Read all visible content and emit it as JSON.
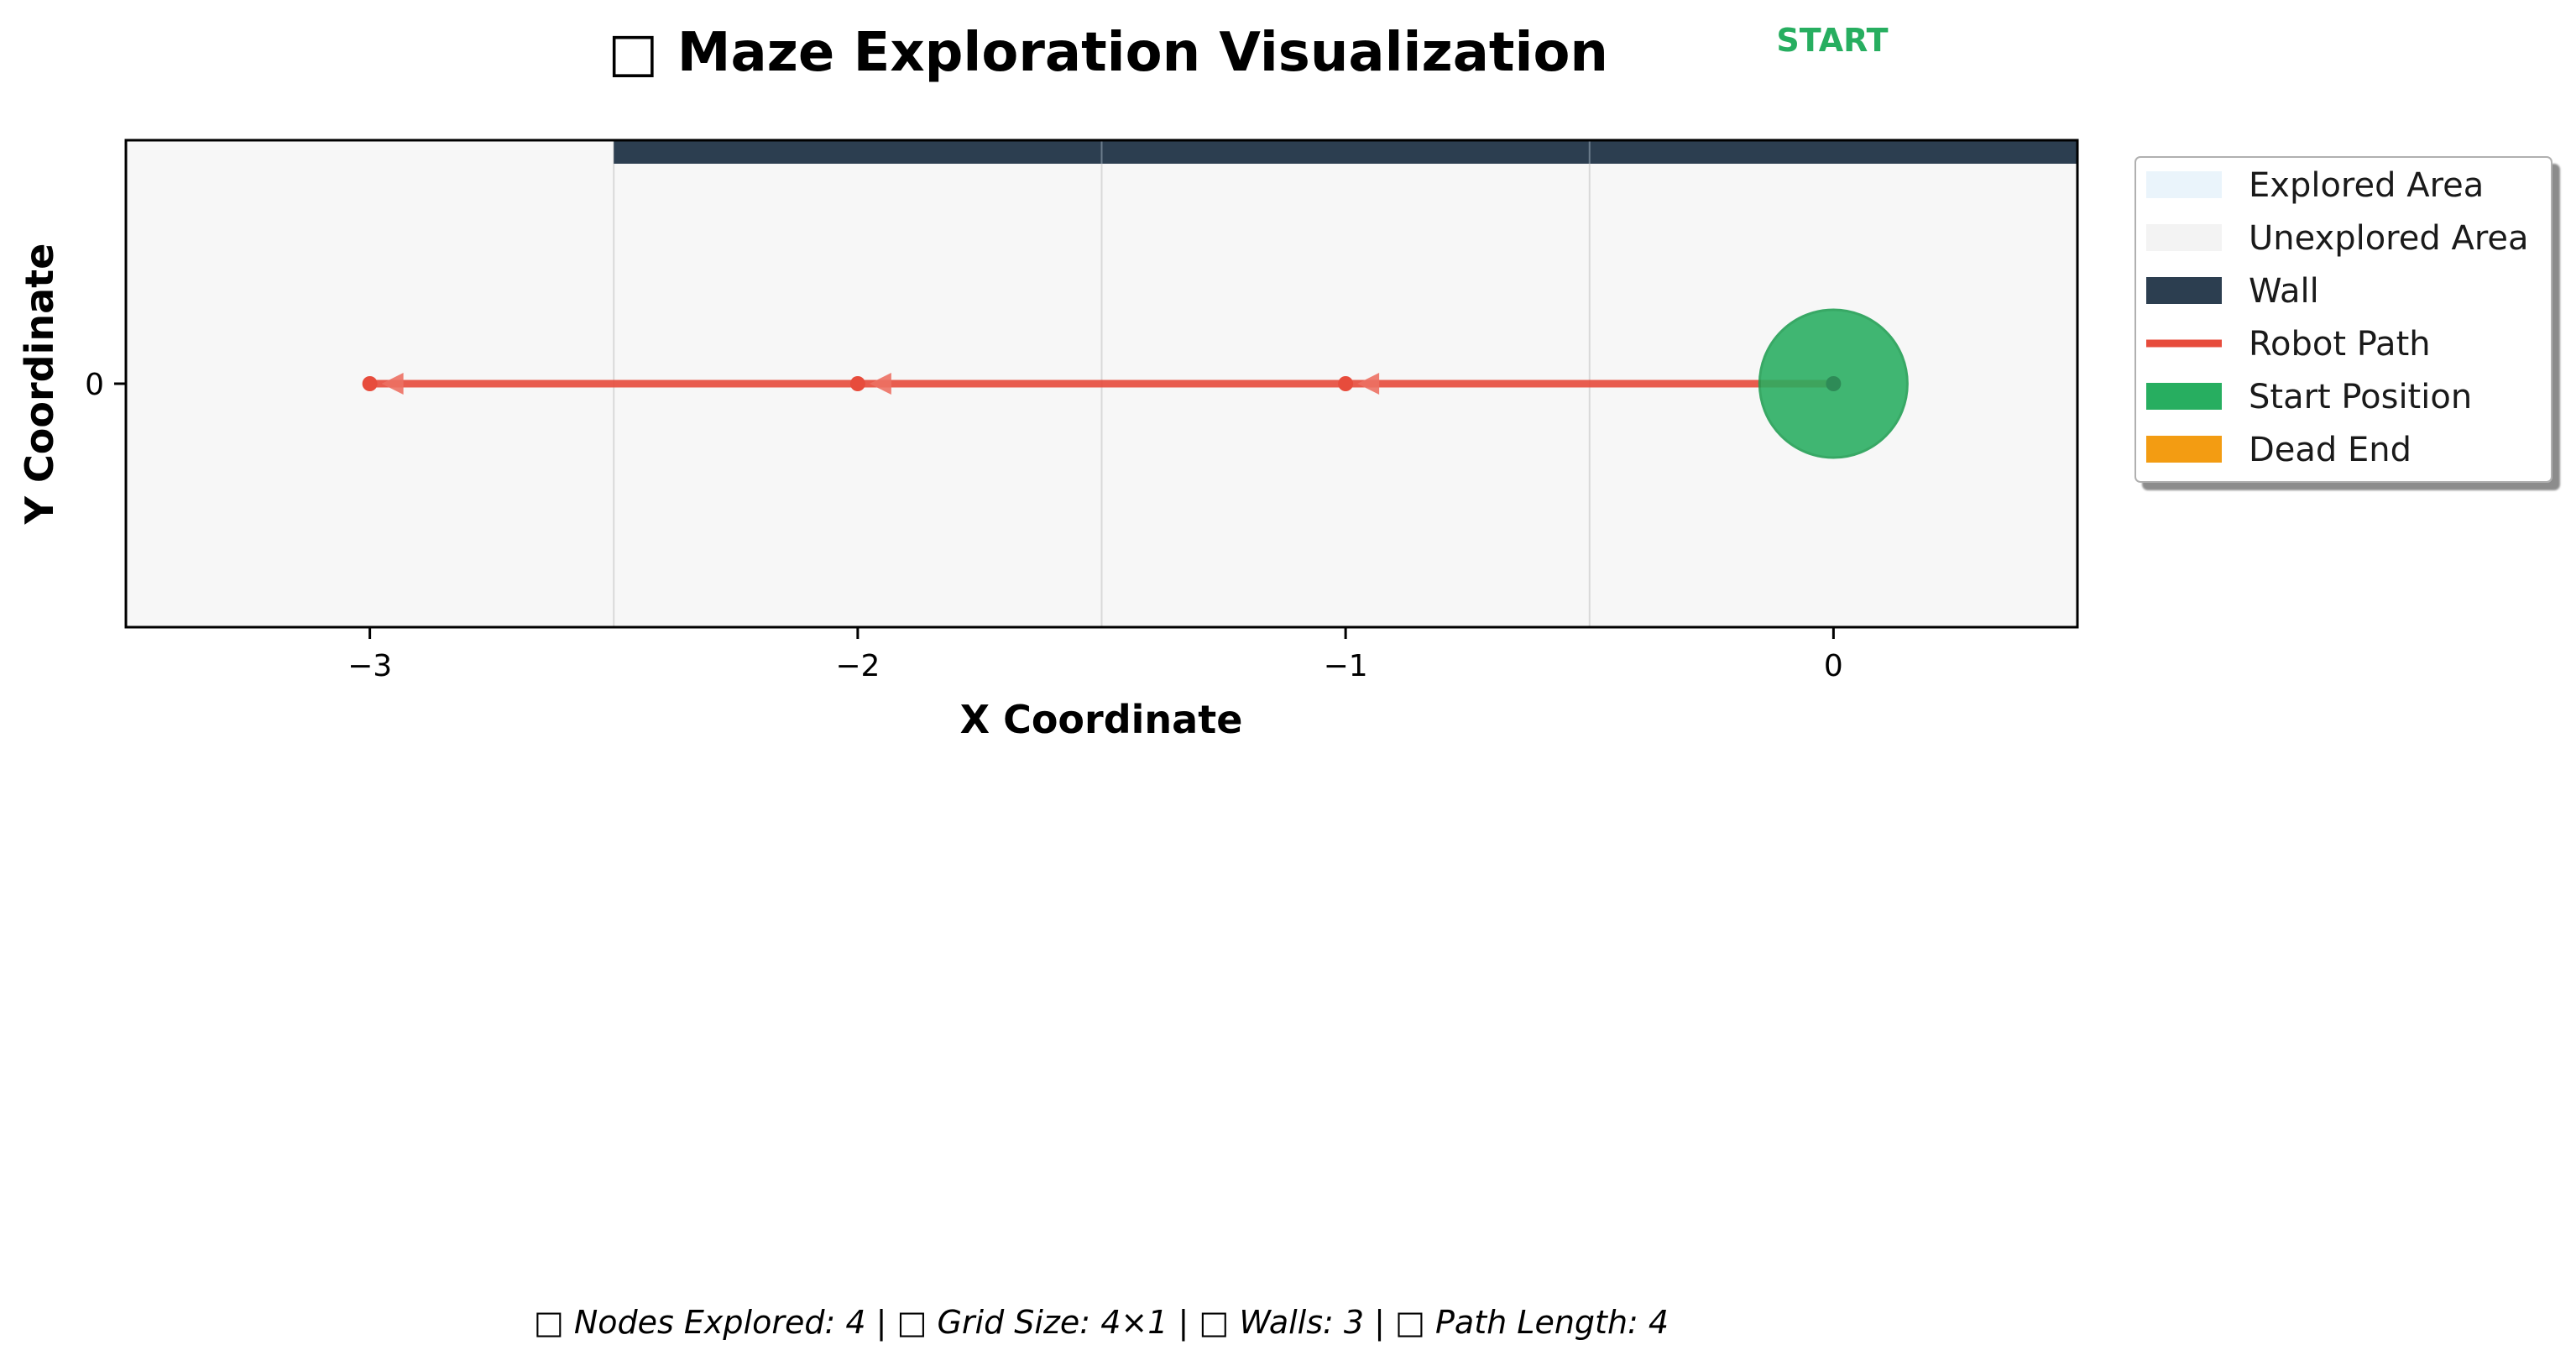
{
  "chart_data": {
    "type": "scatter",
    "title": "□ Maze Exploration Visualization",
    "xlabel": "X Coordinate",
    "ylabel": "Y Coordinate",
    "xlim": [
      -3.5,
      0.5
    ],
    "ylim": [
      -0.5,
      0.5
    ],
    "x_ticks": [
      -3,
      -2,
      -1,
      0
    ],
    "x_tick_labels": [
      "−3",
      "−2",
      "−1",
      "0"
    ],
    "y_ticks": [
      0
    ],
    "y_tick_labels": [
      "0"
    ],
    "grid_x_lines": [
      -2.5,
      -1.5,
      -0.5
    ],
    "cells": [
      {
        "x": -3,
        "y": 0,
        "state": "unexplored"
      },
      {
        "x": -2,
        "y": 0,
        "state": "unexplored"
      },
      {
        "x": -1,
        "y": 0,
        "state": "unexplored"
      },
      {
        "x": 0,
        "y": 0,
        "state": "unexplored"
      }
    ],
    "walls": [
      {
        "x0": -2.5,
        "x1": 0.5,
        "y": 0.5
      }
    ],
    "robot_path": {
      "x": [
        0,
        -1,
        -2,
        -3
      ],
      "y": [
        0,
        0,
        0,
        0
      ]
    },
    "start_position": {
      "x": 0,
      "y": 0,
      "label": "START"
    },
    "legend": {
      "placement": "outside-right-top",
      "entries": [
        {
          "label": "Explored Area",
          "color": "#eaf4fb",
          "kind": "patch"
        },
        {
          "label": "Unexplored Area",
          "color": "#f3f3f3",
          "kind": "patch"
        },
        {
          "label": "Wall",
          "color": "#2c3e50",
          "kind": "patch"
        },
        {
          "label": "Robot Path",
          "color": "#e74c3c",
          "kind": "line"
        },
        {
          "label": "Start Position",
          "color": "#27ae60",
          "kind": "patch"
        },
        {
          "label": "Dead End",
          "color": "#f39c12",
          "kind": "patch"
        }
      ]
    },
    "colors": {
      "background": "#f7f7f7",
      "wall": "#2c3e50",
      "path": "#e74c3c",
      "start": "#27ae60",
      "grid": "#d9d9d9"
    },
    "footer": "□ Nodes Explored: 4 | □ Grid Size: 4×1 | □ Walls: 3 | □ Path Length: 4"
  }
}
